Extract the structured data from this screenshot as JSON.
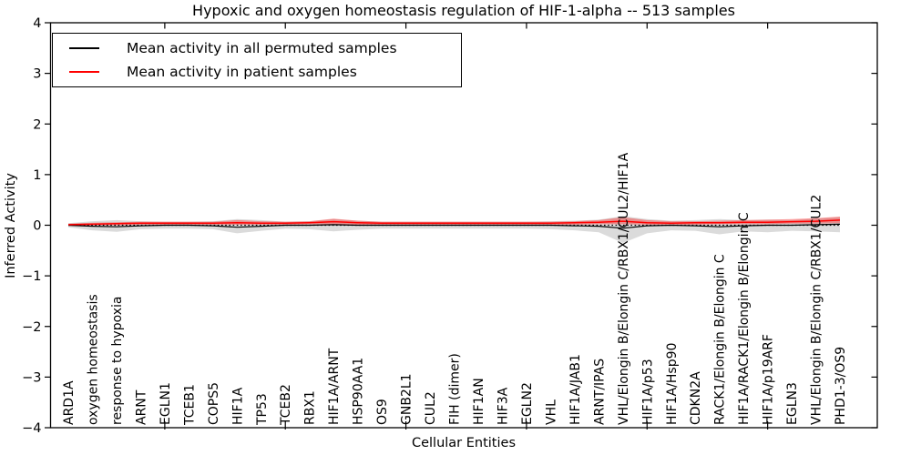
{
  "figure": {
    "title": "Hypoxic and oxygen homeostasis regulation of HIF-1-alpha -- 513 samples",
    "xlabel": "Cellular Entities",
    "ylabel": "Inferred Activity",
    "legend": [
      {
        "name": "permuted",
        "label": "Mean activity in all permuted samples",
        "color": "#000000"
      },
      {
        "name": "patient",
        "label": "Mean activity in patient samples",
        "color": "#ff0000"
      }
    ]
  },
  "chart_data": {
    "type": "line",
    "title": "Hypoxic and oxygen homeostasis regulation of HIF-1-alpha -- 513 samples",
    "xlabel": "Cellular Entities",
    "ylabel": "Inferred Activity",
    "ylim": [
      -4,
      4
    ],
    "yticks": [
      -4,
      -3,
      -2,
      -1,
      0,
      1,
      2,
      3,
      4
    ],
    "x_major_ticks": [
      5,
      10,
      15,
      20,
      25,
      30
    ],
    "grid": false,
    "legend_position": "upper left",
    "categories": [
      "ARD1A",
      "oxygen homeostasis",
      "response to hypoxia",
      "ARNT",
      "EGLN1",
      "TCEB1",
      "COPS5",
      "HIF1A",
      "TP53",
      "TCEB2",
      "RBX1",
      "HIF1A/ARNT",
      "HSP90AA1",
      "OS9",
      "GNB2L1",
      "CUL2",
      "FIH (dimer)",
      "HIF1AN",
      "HIF3A",
      "EGLN2",
      "VHL",
      "HIF1A/JAB1",
      "ARNT/IPAS",
      "VHL/Elongin B/Elongin C/RBX1/CUL2/HIF1A",
      "HIF1A/p53",
      "HIF1A/Hsp90",
      "CDKN2A",
      "RACK1/Elongin B/Elongin C",
      "HIF1A/RACK1/Elongin B/Elongin C",
      "HIF1A/p19ARF",
      "EGLN3",
      "VHL/Elongin B/Elongin C/RBX1/CUL2",
      "PHD1-3/OS9"
    ],
    "series": [
      {
        "name": "Mean activity in all permuted samples",
        "color": "#000000",
        "width": 1.2,
        "values": [
          0.0,
          -0.02,
          -0.03,
          -0.01,
          0.0,
          0.0,
          -0.01,
          -0.04,
          -0.02,
          0.0,
          0.0,
          0.01,
          0.0,
          0.0,
          0.0,
          0.0,
          0.0,
          0.0,
          0.0,
          0.0,
          0.0,
          -0.01,
          -0.02,
          -0.06,
          -0.01,
          0.0,
          -0.01,
          -0.03,
          -0.01,
          0.0,
          0.0,
          0.01,
          0.02
        ]
      },
      {
        "name": "Mean activity in patient samples",
        "color": "#ff0000",
        "width": 1.5,
        "values": [
          0.01,
          0.02,
          0.03,
          0.04,
          0.04,
          0.04,
          0.04,
          0.05,
          0.04,
          0.04,
          0.05,
          0.07,
          0.05,
          0.04,
          0.04,
          0.04,
          0.04,
          0.04,
          0.04,
          0.04,
          0.04,
          0.05,
          0.06,
          0.08,
          0.05,
          0.04,
          0.05,
          0.05,
          0.06,
          0.06,
          0.07,
          0.08,
          0.1
        ]
      }
    ],
    "bands": [
      {
        "name": "permuted-std-band",
        "color": "#000000",
        "opacity": 0.14,
        "upper": [
          0.04,
          0.08,
          0.1,
          0.08,
          0.07,
          0.07,
          0.08,
          0.12,
          0.1,
          0.07,
          0.08,
          0.12,
          0.09,
          0.07,
          0.07,
          0.07,
          0.07,
          0.07,
          0.07,
          0.07,
          0.08,
          0.09,
          0.11,
          0.18,
          0.12,
          0.09,
          0.1,
          0.12,
          0.1,
          0.11,
          0.1,
          0.13,
          0.16
        ],
        "lower": [
          -0.04,
          -0.1,
          -0.13,
          -0.08,
          -0.07,
          -0.07,
          -0.08,
          -0.16,
          -0.11,
          -0.07,
          -0.08,
          -0.12,
          -0.09,
          -0.07,
          -0.07,
          -0.07,
          -0.07,
          -0.07,
          -0.07,
          -0.07,
          -0.08,
          -0.1,
          -0.14,
          -0.35,
          -0.16,
          -0.1,
          -0.11,
          -0.18,
          -0.12,
          -0.14,
          -0.11,
          -0.12,
          -0.14
        ]
      },
      {
        "name": "patient-std-band",
        "color": "#ff0000",
        "opacity": 0.35,
        "upper": [
          0.03,
          0.05,
          0.06,
          0.07,
          0.07,
          0.07,
          0.07,
          0.1,
          0.08,
          0.07,
          0.08,
          0.13,
          0.09,
          0.07,
          0.07,
          0.07,
          0.07,
          0.07,
          0.07,
          0.07,
          0.07,
          0.08,
          0.1,
          0.16,
          0.1,
          0.08,
          0.08,
          0.09,
          0.1,
          0.11,
          0.12,
          0.14,
          0.17
        ],
        "lower": [
          -0.01,
          0.0,
          0.0,
          0.01,
          0.01,
          0.01,
          0.01,
          0.01,
          0.01,
          0.01,
          0.02,
          0.02,
          0.01,
          0.01,
          0.01,
          0.01,
          0.01,
          0.01,
          0.01,
          0.01,
          0.01,
          0.01,
          0.02,
          0.02,
          0.01,
          0.01,
          0.01,
          0.02,
          0.02,
          0.02,
          0.03,
          0.03,
          0.04
        ]
      }
    ],
    "zero_line": {
      "y": 0,
      "style": "dotted",
      "color": "#000000"
    }
  }
}
